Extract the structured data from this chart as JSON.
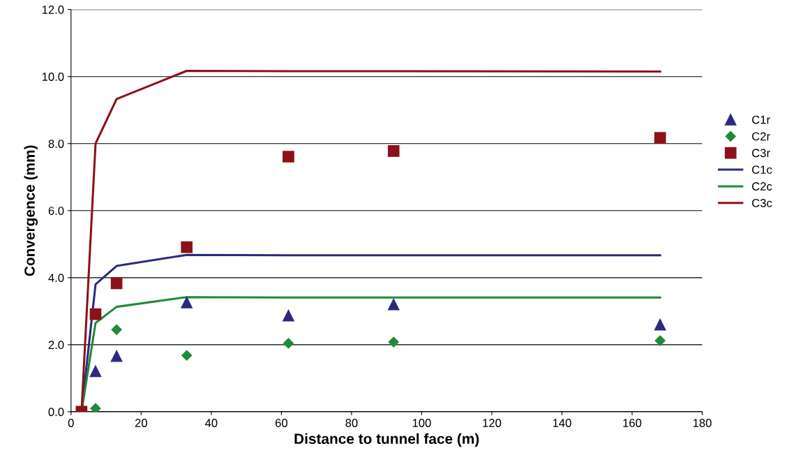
{
  "chart_data": {
    "type": "scatter",
    "xlabel": "Distance to tunnel face (m)",
    "ylabel": "Convergence (mm)",
    "x": [
      3,
      7,
      13,
      33,
      62,
      92,
      168
    ],
    "series": [
      {
        "name": "C1r",
        "marker": "triangle",
        "color": "#2b2a80",
        "values": [
          null,
          1.21,
          1.66,
          3.26,
          2.87,
          3.2,
          2.6
        ]
      },
      {
        "name": "C2r",
        "marker": "diamond",
        "color": "#1f8a3a",
        "values": [
          null,
          0.1,
          2.45,
          1.68,
          2.04,
          2.08,
          2.12
        ]
      },
      {
        "name": "C3r",
        "marker": "square",
        "color": "#8b1218",
        "values": [
          0,
          2.91,
          3.83,
          4.91,
          7.61,
          7.78,
          8.17
        ]
      },
      {
        "name": "C1c",
        "type": "line",
        "color": "#2b2a80",
        "values": [
          0,
          3.8,
          4.35,
          4.68,
          4.67,
          4.67,
          4.67
        ]
      },
      {
        "name": "C2c",
        "type": "line",
        "color": "#1f8a3a",
        "values": [
          0,
          2.65,
          3.13,
          3.42,
          3.41,
          3.41,
          3.41
        ]
      },
      {
        "name": "C3c",
        "type": "line",
        "color": "#8b1218",
        "values": [
          0,
          8.0,
          9.33,
          10.17,
          10.16,
          10.16,
          10.15
        ]
      }
    ],
    "xlim": [
      0,
      180
    ],
    "xticks": [
      0,
      20,
      40,
      60,
      80,
      100,
      120,
      140,
      160,
      180
    ],
    "ylim": [
      0,
      12
    ],
    "yticks": [
      {
        "value": 0,
        "label": "0.0"
      },
      {
        "value": 2,
        "label": "2.0"
      },
      {
        "value": 4,
        "label": "4.0"
      },
      {
        "value": 6,
        "label": "6.0"
      },
      {
        "value": 8,
        "label": "8.0"
      },
      {
        "value": 10,
        "label": "10.0"
      },
      {
        "value": 12,
        "label": "12.0"
      }
    ],
    "grid": "y",
    "legend": "right"
  }
}
